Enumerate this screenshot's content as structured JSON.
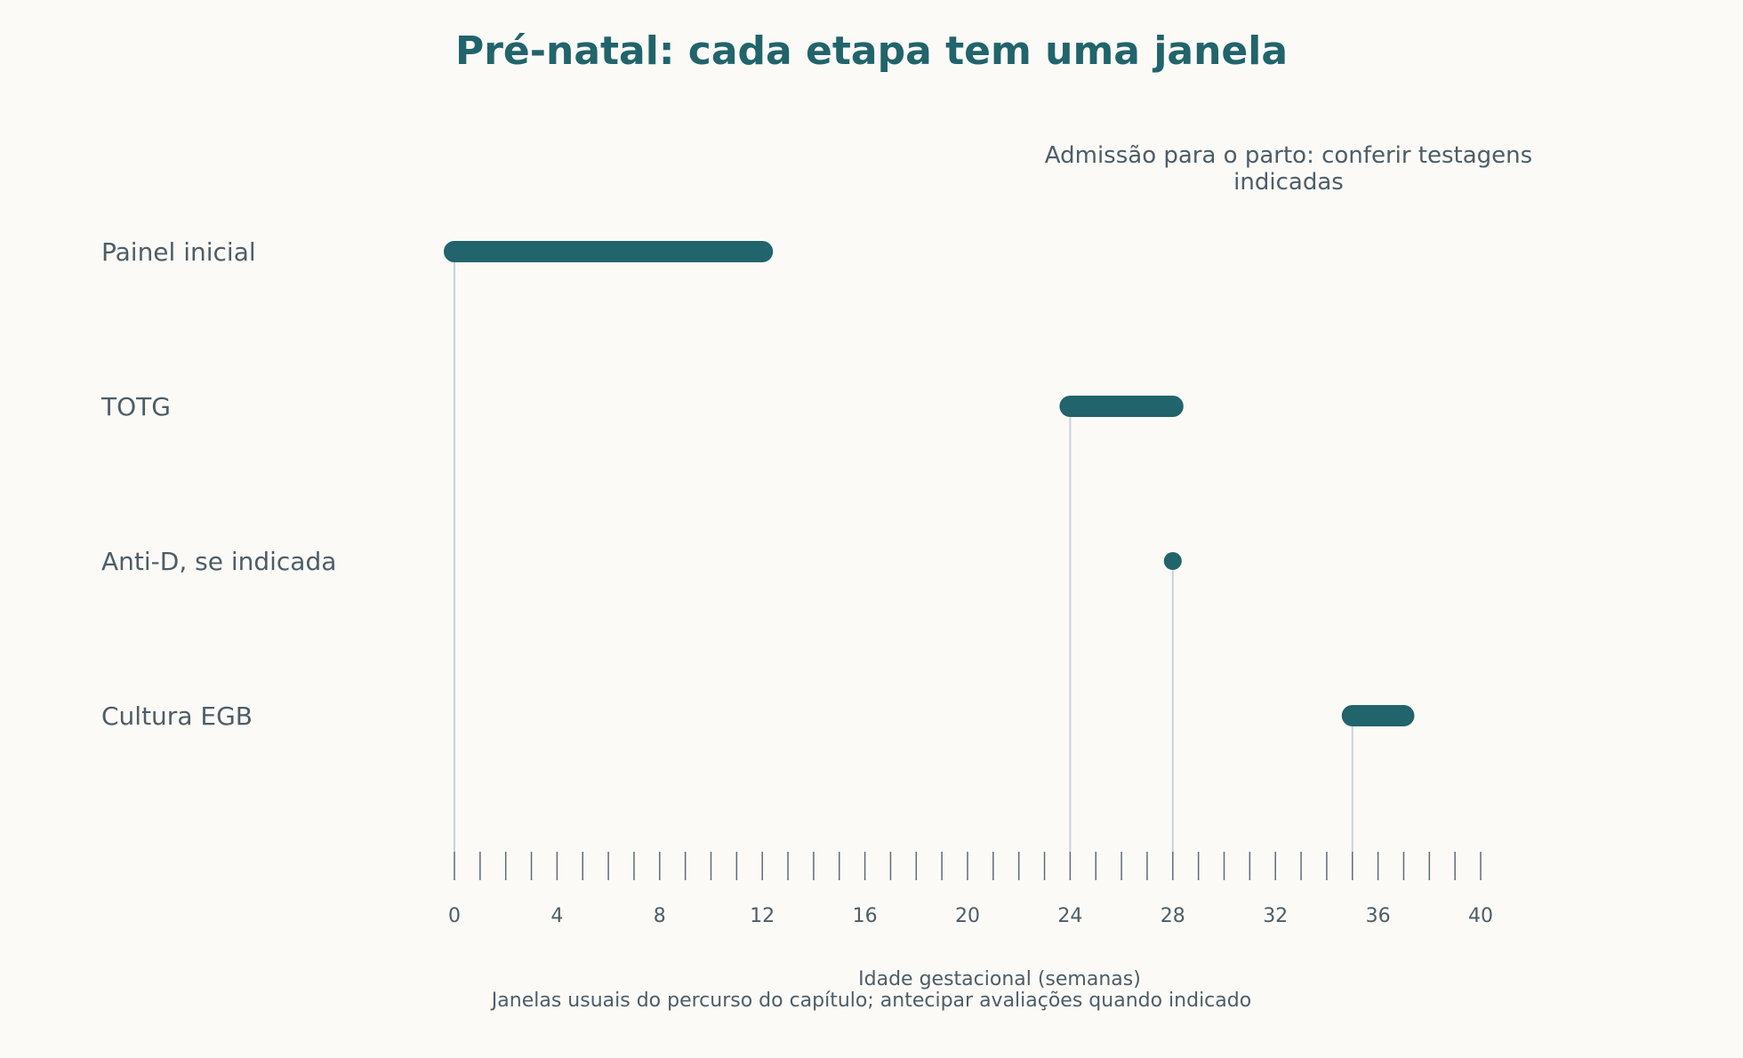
{
  "chart_data": {
    "type": "bar",
    "title": "Pré-natal: cada etapa tem uma janela",
    "annotation": "Admissão para o parto: conferir testagens indicadas",
    "xlabel": "Idade gestacional (semanas)",
    "footnote": "Janelas usuais do percurso do capítulo; antecipar avaliações quando indicado",
    "xlim": [
      0,
      40
    ],
    "x_ticks": [
      0,
      4,
      8,
      12,
      16,
      20,
      24,
      28,
      32,
      36,
      40
    ],
    "minor_tick_step": 1,
    "grid": false,
    "categories": [
      "Painel inicial",
      "TOTG",
      "Anti-D, se indicada",
      "Cultura EGB"
    ],
    "series": [
      {
        "windows": [
          {
            "label": "Painel inicial",
            "start": 0,
            "end": 12
          },
          {
            "label": "TOTG",
            "start": 24,
            "end": 28
          },
          {
            "label": "Anti-D, se indicada",
            "start": 28,
            "end": 28
          },
          {
            "label": "Cultura EGB",
            "start": 35,
            "end": 37
          }
        ]
      }
    ],
    "colors": {
      "bar": "#21646b",
      "title": "#21646b",
      "text": "#4d5d66",
      "axis": "#5f6b73",
      "guide": "#c9d3d6",
      "background": "#fbfaf7"
    }
  }
}
